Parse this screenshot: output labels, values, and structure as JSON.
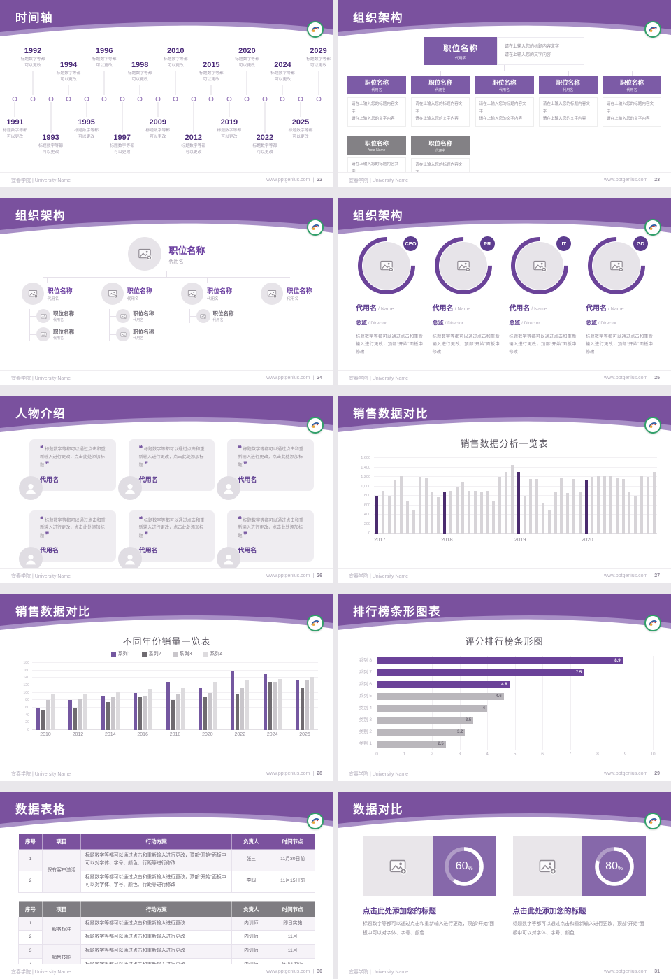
{
  "footer": {
    "left": "宜春学院 | University Name",
    "site": "www.pptgenius.com",
    "sep": "|"
  },
  "slides": {
    "s22": {
      "header": "时间轴",
      "page": "22",
      "caption1": "标题数字等都",
      "caption2": "可以更改",
      "top_years": [
        "1992",
        "1994",
        "1996",
        "1998",
        "2010",
        "2015",
        "2020",
        "2024",
        "2029"
      ],
      "bottom_years": [
        "1991",
        "1993",
        "1995",
        "1997",
        "2009",
        "2012",
        "2019",
        "2022",
        "2025"
      ]
    },
    "s23": {
      "header": "组织架构",
      "page": "23",
      "root_title": "职位名称",
      "root_sub": "代用名",
      "root_desc1": "请在上输入您的标题内容文字",
      "root_desc2": "请在上输入您的文字内容",
      "col_title": "职位名称",
      "col_sub": "代用名",
      "col_desc1": "请在上输入您的标题内容文字",
      "col_desc2": "请在上输入您的文字内容",
      "col_count": 5,
      "gray_boxes": [
        {
          "title": "职位名称",
          "sub": "Your Name"
        },
        {
          "title": "职位名称",
          "sub": "代用名"
        }
      ]
    },
    "s24": {
      "header": "组织架构",
      "page": "24",
      "node_title": "职位名称",
      "node_sub": "代用名",
      "branch_subs": [
        2,
        2,
        1,
        0
      ]
    },
    "s25": {
      "header": "组织架构",
      "page": "25",
      "badges": [
        "CEO",
        "PR",
        "IT",
        "GD"
      ],
      "name": "代用名",
      "name_en": "/ Name",
      "role": "总监",
      "role_en": "/ Director",
      "desc": "标题数字等都可以通过点击和重新输入进行更改，顶部“开始”面板中修改"
    },
    "s26": {
      "header": "人物介绍",
      "page": "26",
      "cards": 6,
      "quote": "标题数字等都可以通过点击和重新输入进行更改，点击此处添加标题",
      "name": "代用名"
    },
    "s27": {
      "header": "销售数据对比",
      "page": "27"
    },
    "s28": {
      "header": "销售数据对比",
      "page": "28"
    },
    "s29": {
      "header": "排行榜条形图表",
      "page": "29"
    },
    "s30": {
      "header": "数据表格",
      "page": "30",
      "t1": {
        "headers": [
          "序号",
          "项目",
          "行动方案",
          "负责人",
          "时间节点"
        ],
        "long_text": "标题数字等都可以通过点击和重新输入进行更改，顶部“开始”面板中可以对字体、字号、颜色、行距等进行修改",
        "group": "保有客户激活",
        "rows": [
          {
            "no": "1",
            "owner": "张三",
            "time": "11月30日前"
          },
          {
            "no": "2",
            "owner": "李四",
            "time": "11月15日前"
          }
        ]
      },
      "t2": {
        "headers": [
          "序号",
          "项目",
          "行动方案",
          "负责人",
          "时间节点"
        ],
        "text": "标题数字等都可以通过点击和重新输入进行更改",
        "groups": [
          "服务标准",
          "销售技能"
        ],
        "rows": [
          {
            "no": "1",
            "owner": "内训师",
            "time": "即日实施"
          },
          {
            "no": "2",
            "owner": "内训师",
            "time": "11月"
          },
          {
            "no": "3",
            "owner": "内训师",
            "time": "11月"
          },
          {
            "no": "4",
            "owner": "内训师",
            "time": "至少1次/月"
          }
        ]
      }
    },
    "s31": {
      "header": "数据对比",
      "page": "31",
      "heading": "点击此处添加您的标题",
      "desc": "标题数字等都可以通过点击和重新输入进行更改，顶部“开始”面板中可以对字体、字号、颜色"
    }
  },
  "chart_data": [
    {
      "slide": "27",
      "type": "bar",
      "title": "销售数据分析一览表",
      "x_groups": [
        "2017",
        "2018",
        "2019",
        "2020"
      ],
      "group_start_indices": [
        0,
        11,
        23,
        34
      ],
      "values": [
        790,
        900,
        800,
        1140,
        1210,
        700,
        500,
        1200,
        1180,
        890,
        770,
        880,
        900,
        1000,
        1090,
        910,
        900,
        880,
        900,
        700,
        1200,
        1310,
        1450,
        1300,
        800,
        1150,
        1160,
        660,
        490,
        870,
        1170,
        860,
        1150,
        890,
        1140,
        1200,
        1220,
        1230,
        1220,
        1170,
        1160,
        890,
        780,
        1210,
        1200,
        1300
      ],
      "highlight_indices": [
        0,
        11,
        23,
        34
      ],
      "bar_color": "#d7d4d8",
      "highlight_color": "#4b2c6f",
      "ylim": [
        0,
        1600
      ],
      "yticks": [
        "0",
        "200",
        "400",
        "600",
        "800",
        "1,000",
        "1,200",
        "1,400",
        "1,600"
      ],
      "grid": true,
      "legend": false
    },
    {
      "slide": "28",
      "type": "bar",
      "title": "不同年份销量一览表",
      "categories": [
        "2010",
        "2012",
        "2014",
        "2016",
        "2018",
        "2020",
        "2022",
        "2024",
        "2026"
      ],
      "series": [
        {
          "name": "系列1",
          "color": "#7457a0",
          "values": [
            60,
            80,
            90,
            100,
            130,
            112,
            160,
            150,
            135
          ]
        },
        {
          "name": "系列2",
          "color": "#6f6b70",
          "values": [
            55,
            60,
            75,
            88,
            80,
            88,
            95,
            130,
            112
          ]
        },
        {
          "name": "系列3",
          "color": "#c9c6cb",
          "values": [
            80,
            85,
            88,
            92,
            97,
            100,
            112,
            130,
            135
          ]
        },
        {
          "name": "系列4",
          "color": "#dddbde",
          "values": [
            95,
            98,
            102,
            110,
            112,
            130,
            133,
            137,
            143
          ]
        }
      ],
      "ylim": [
        0,
        180
      ],
      "yticks": [
        "0",
        "20",
        "40",
        "60",
        "80",
        "100",
        "120",
        "140",
        "160",
        "180"
      ],
      "grid": true,
      "legend_position": "top"
    },
    {
      "slide": "29",
      "type": "bar",
      "orientation": "horizontal",
      "title": "评分排行榜条形图",
      "categories": [
        "系列 8",
        "系列 7",
        "系列 6",
        "系列 5",
        "类别 4",
        "类别 3",
        "类别 2",
        "类别 1"
      ],
      "values": [
        8.9,
        7.5,
        4.8,
        4.6,
        4,
        3.5,
        3.2,
        2.5
      ],
      "bar_colors": [
        "#6b4299",
        "#6b4299",
        "#6b4299",
        "#bab7bc",
        "#bab7bc",
        "#bab7bc",
        "#bab7bc",
        "#bab7bc"
      ],
      "xlim": [
        0,
        10
      ],
      "xticks": [
        "0",
        "1",
        "2",
        "3",
        "4",
        "5",
        "6",
        "7",
        "8",
        "9",
        "10"
      ],
      "grid": true
    },
    {
      "slide": "31",
      "type": "donut",
      "values": [
        60,
        80
      ],
      "unit": "%",
      "ring_color": "#ffffff"
    }
  ]
}
